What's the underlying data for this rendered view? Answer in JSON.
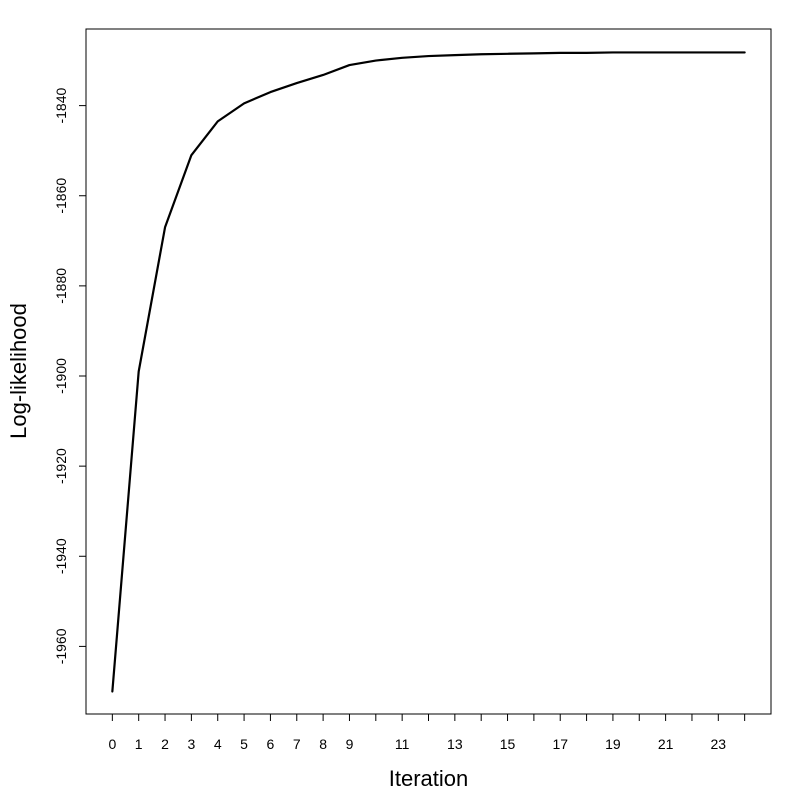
{
  "chart_data": {
    "type": "line",
    "title": "",
    "xlabel": "Iteration",
    "ylabel": "Log-likelihood",
    "xlim": [
      -1,
      25
    ],
    "ylim": [
      -1975,
      -1823
    ],
    "grid": false,
    "legend": "none",
    "x_tick_values": [
      0,
      1,
      2,
      3,
      4,
      5,
      6,
      7,
      8,
      9,
      10,
      11,
      12,
      13,
      14,
      15,
      16,
      17,
      18,
      19,
      20,
      21,
      22,
      23,
      24
    ],
    "x_tick_labels": [
      "0",
      "1",
      "2",
      "3",
      "4",
      "5",
      "6",
      "7",
      "8",
      "9",
      "11",
      "13",
      "15",
      "17",
      "19",
      "21",
      "23"
    ],
    "x_tick_label_values": [
      0,
      1,
      2,
      3,
      4,
      5,
      6,
      7,
      8,
      9,
      11,
      13,
      15,
      17,
      19,
      21,
      23
    ],
    "y_ticks": [
      -1960,
      -1940,
      -1920,
      -1900,
      -1880,
      -1860,
      -1840
    ],
    "y_tick_labels": [
      "-1960",
      "-1940",
      "-1920",
      "-1900",
      "-1880",
      "-1860",
      "-1840"
    ],
    "line_color": "#000000",
    "series": [
      {
        "x": [
          0,
          1,
          2,
          3,
          4,
          5,
          6,
          7,
          8,
          9,
          10,
          11,
          12,
          13,
          14,
          15,
          16,
          17,
          18,
          19,
          20,
          21,
          22,
          23,
          24
        ],
        "values": [
          -1970,
          -1899,
          -1867,
          -1851,
          -1843.5,
          -1839.5,
          -1837,
          -1835,
          -1833.2,
          -1831,
          -1830,
          -1829.4,
          -1829,
          -1828.8,
          -1828.6,
          -1828.5,
          -1828.4,
          -1828.3,
          -1828.3,
          -1828.2,
          -1828.2,
          -1828.2,
          -1828.2,
          -1828.2,
          -1828.2
        ]
      }
    ]
  }
}
